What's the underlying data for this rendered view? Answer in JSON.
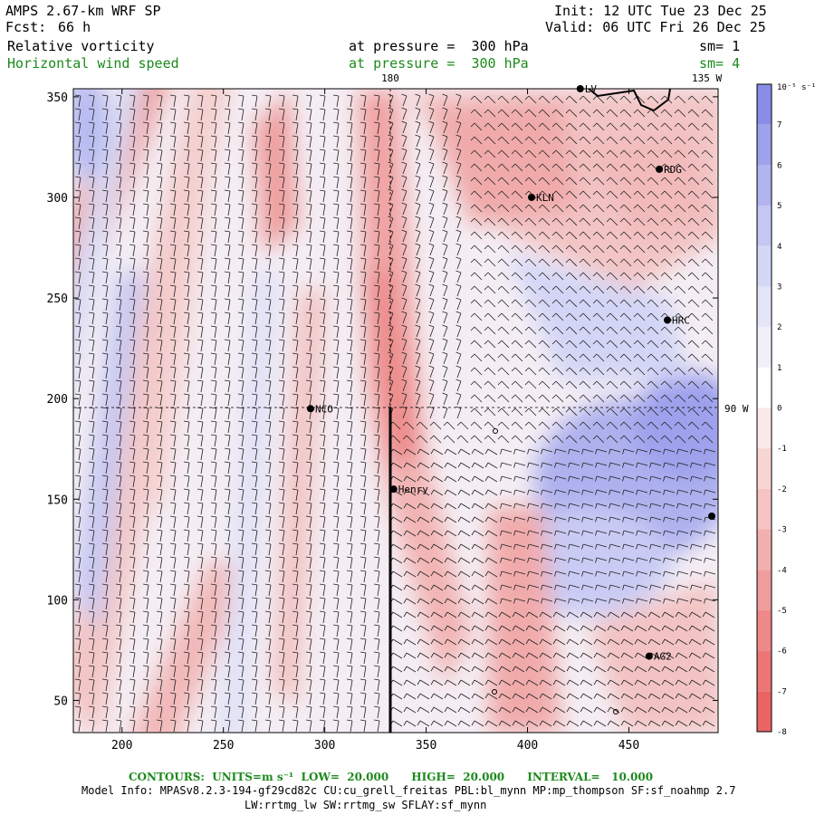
{
  "header": {
    "model": "AMPS 2.67-km WRF SP",
    "forecast_label": "Fcst:",
    "forecast_hours": "66 h",
    "init": "Init: 12 UTC Tue 23 Dec 25",
    "valid": "Valid: 06 UTC Fri 26 Dec 25",
    "field1": "Relative vorticity",
    "field1_level": "at pressure =  300 hPa",
    "field1_sm": "sm= 1",
    "field2": "Horizontal wind speed",
    "field2_level": "at pressure =  300 hPa",
    "field2_sm": "sm= 4"
  },
  "map": {
    "lon_top_180": "180",
    "lon_top_135w": "135 W",
    "lon_right_90w": "90 W",
    "x_ticks": [
      "200",
      "250",
      "300",
      "350",
      "400",
      "450"
    ],
    "y_ticks": [
      "50",
      "100",
      "150",
      "200",
      "250",
      "300",
      "350"
    ],
    "x_range": [
      176,
      494
    ],
    "y_range": [
      34,
      354
    ],
    "stations": [
      {
        "name": "RDG",
        "x": 465,
        "y": 314
      },
      {
        "name": "KLN",
        "x": 402,
        "y": 300
      },
      {
        "name": "HRC",
        "x": 469,
        "y": 239
      },
      {
        "name": "NCO",
        "x": 293,
        "y": 195
      },
      {
        "name": "Henry",
        "x": 334,
        "y": 155
      },
      {
        "name": "AG2",
        "x": 460,
        "y": 72
      },
      {
        "name": "LV",
        "x": 426,
        "y": 354
      }
    ]
  },
  "colorbar": {
    "units": "10⁻⁵ s⁻¹",
    "labels": [
      "7",
      "6",
      "5",
      "4",
      "3",
      "2",
      "1",
      "0",
      "-1",
      "-2",
      "-3",
      "-4",
      "-5",
      "-6",
      "-7",
      "-8"
    ],
    "colors": [
      "#8a8de8",
      "#9ea1ec",
      "#b1b4f0",
      "#c4c6f3",
      "#d5d7f6",
      "#e4e5f9",
      "#f0f0fb",
      "#ffffff",
      "#fbe8e8",
      "#f8d5d5",
      "#f6c3c3",
      "#f3b0b0",
      "#f19c9c",
      "#ef8888",
      "#ec7676",
      "#ea6464"
    ]
  },
  "footer": {
    "contours": "CONTOURS:  UNITS=m s⁻¹  LOW=  20.000      HIGH=  20.000      INTERVAL=   10.000",
    "model_info": "Model Info: MPASv8.2.3-194-gf29cd82c CU:cu_grell_freitas PBL:bl_mynn MP:mp_thompson SF:sf_noahmp 2.7",
    "model_info2": "LW:rrtmg_lw SW:rrtmg_sw SFLAY:sf_mynn"
  }
}
